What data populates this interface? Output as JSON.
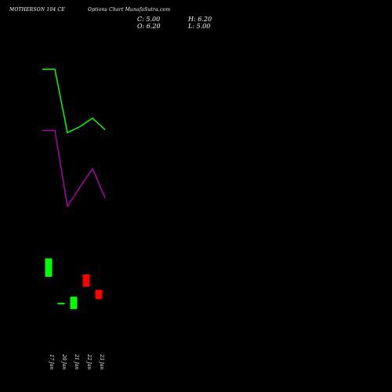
{
  "header": {
    "symbol": "MOTHERSON 104 CE",
    "description": "Options Chart MunafaSutra.com",
    "close_text": "C: 5.00",
    "high_text": "H: 6.20",
    "open_text": "O: 6.20",
    "low_text": "L: 5.00"
  },
  "colors": {
    "background": "#000000",
    "up": "#00ff00",
    "down": "#ff0000",
    "line_green": "#00ff00",
    "line_purple": "#aa00aa",
    "text": "#ffffff"
  },
  "chart_data": {
    "type": "candlestick",
    "categories": [
      "17 Jan",
      "20 Jan",
      "21 Jan",
      "22 Jan",
      "23 Jan"
    ],
    "candles": [
      {
        "date": "17 Jan",
        "open": 7.9,
        "close": 10.3,
        "high": 10.3,
        "low": 7.9
      },
      {
        "date": "20 Jan",
        "open": 4.4,
        "close": 4.5,
        "high": 4.5,
        "low": 4.4
      },
      {
        "date": "21 Jan",
        "open": 3.7,
        "close": 5.3,
        "high": 5.3,
        "low": 3.6
      },
      {
        "date": "22 Jan",
        "open": 8.2,
        "close": 6.6,
        "high": 8.2,
        "low": 6.6
      },
      {
        "date": "23 Jan",
        "open": 6.2,
        "close": 5.0,
        "high": 6.2,
        "low": 5.0
      }
    ],
    "series": [
      {
        "color": "#00ff00",
        "values": [
          [
            -0.5,
            35.0
          ],
          [
            0.5,
            35.0
          ],
          [
            1.5,
            26.7
          ],
          [
            2.5,
            27.5
          ],
          [
            3.5,
            28.6
          ],
          [
            4.5,
            27.1
          ]
        ]
      },
      {
        "color": "#aa00aa",
        "values": [
          [
            -0.5,
            27.0
          ],
          [
            0.5,
            27.0
          ],
          [
            1.5,
            17.1
          ],
          [
            2.5,
            19.6
          ],
          [
            3.5,
            22.0
          ],
          [
            4.5,
            18.2
          ]
        ]
      }
    ],
    "ylim": [
      -1.0,
      43.0
    ]
  }
}
